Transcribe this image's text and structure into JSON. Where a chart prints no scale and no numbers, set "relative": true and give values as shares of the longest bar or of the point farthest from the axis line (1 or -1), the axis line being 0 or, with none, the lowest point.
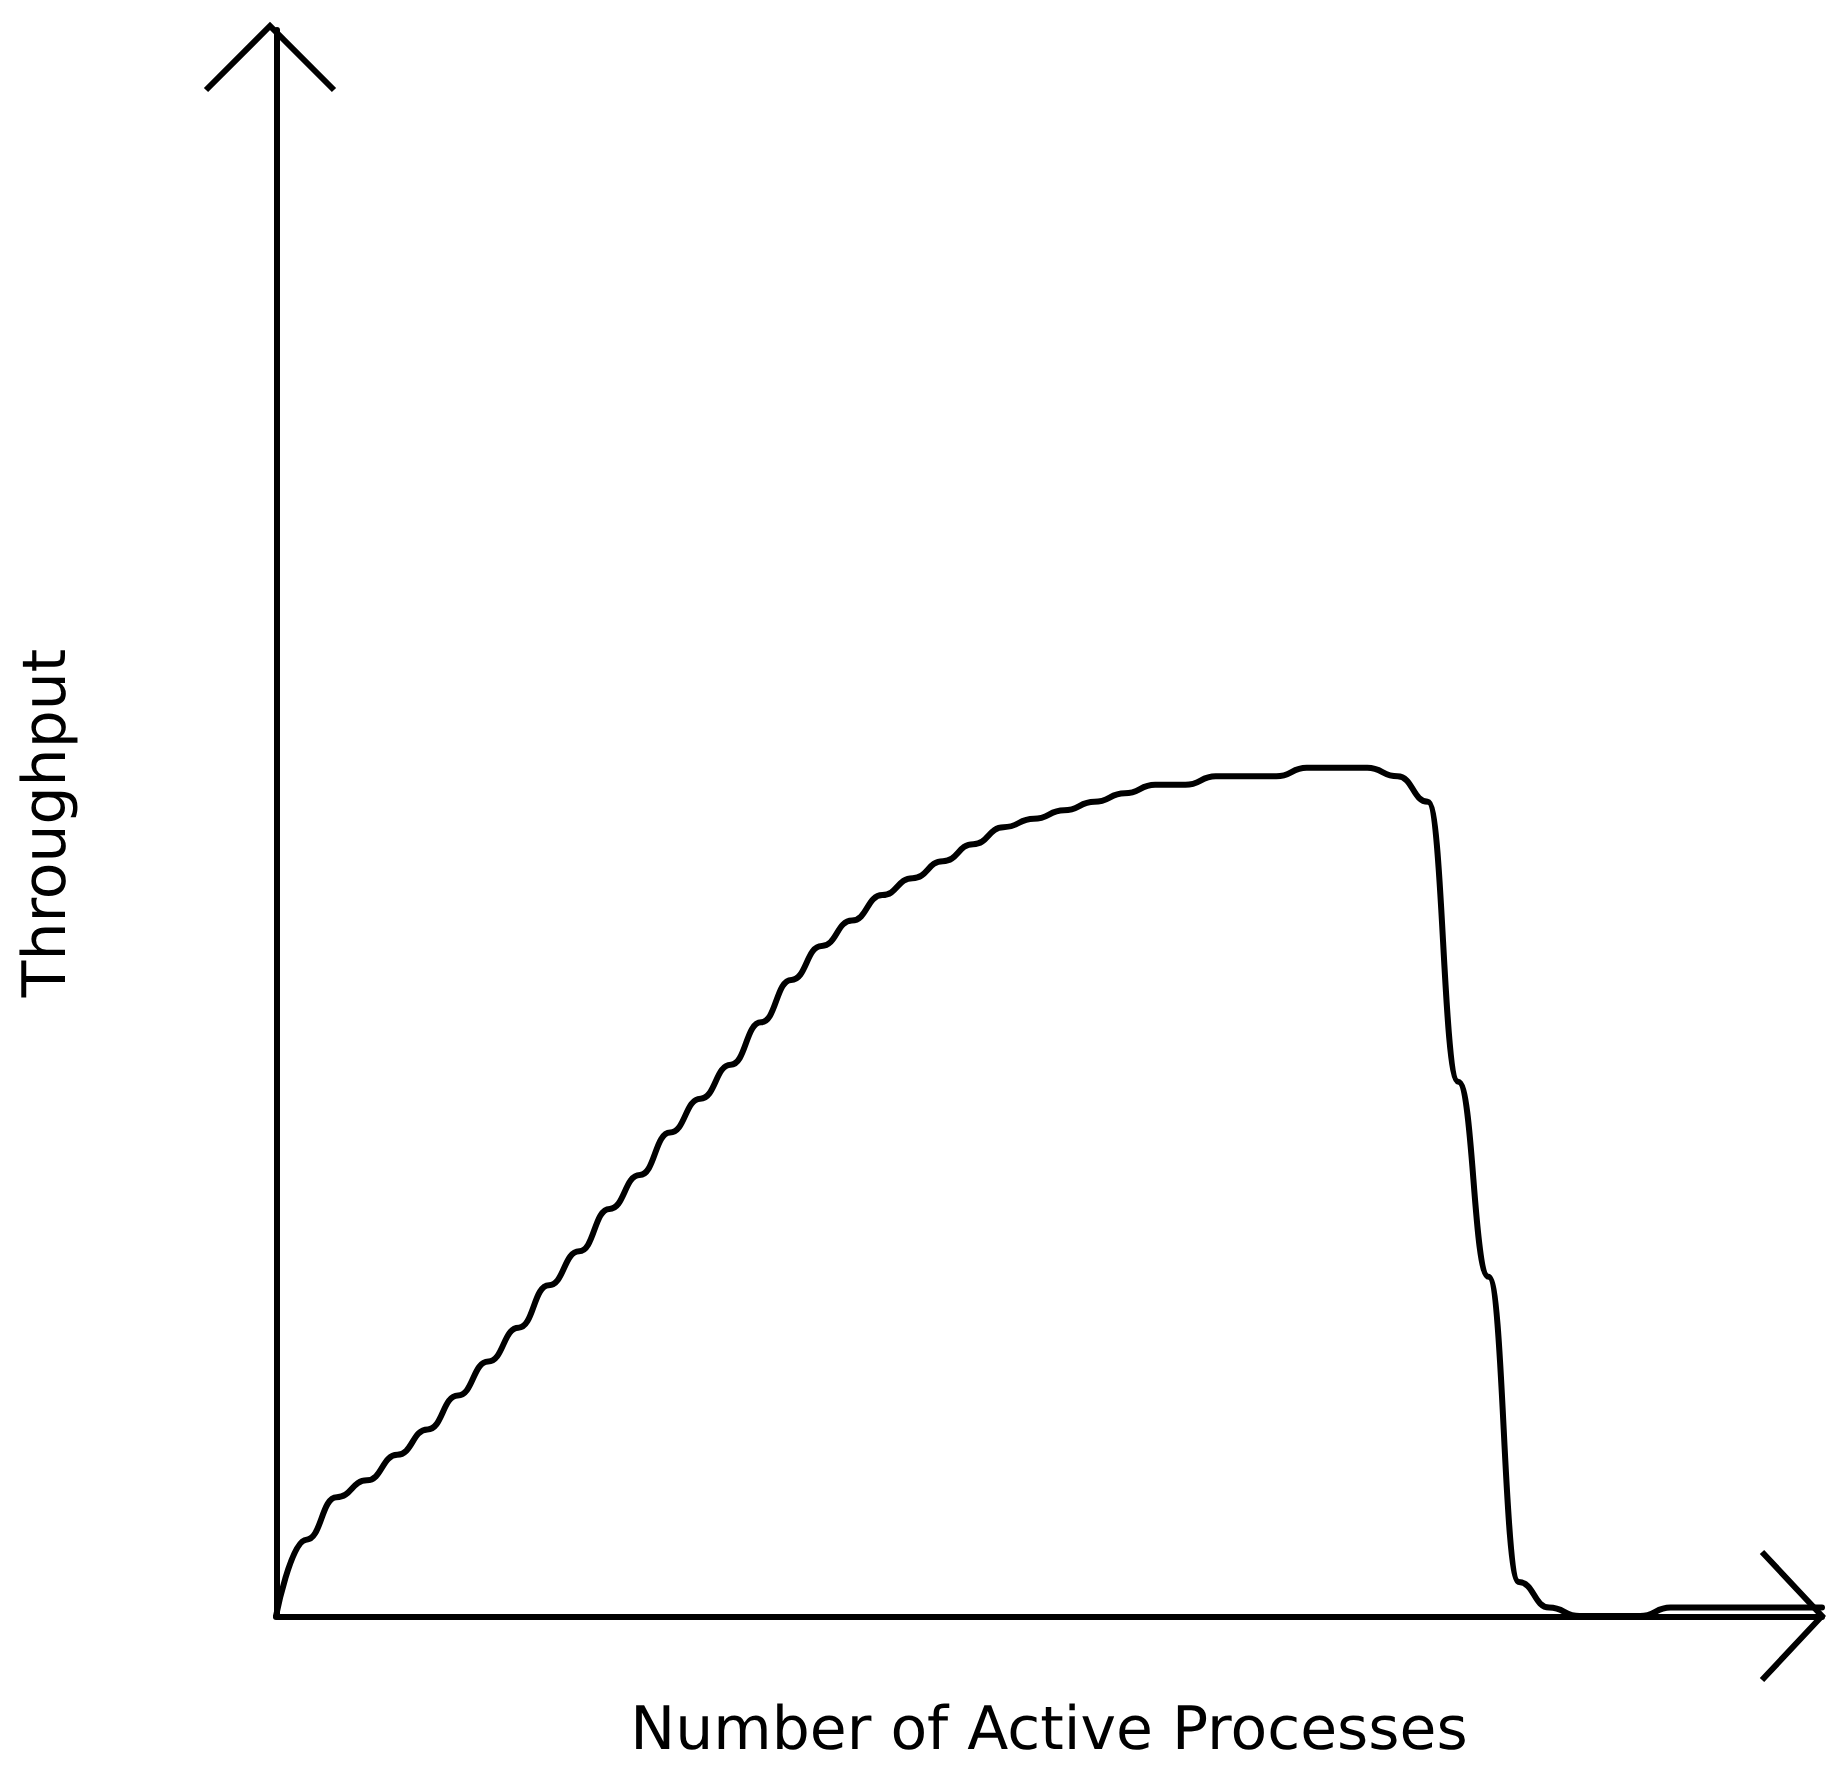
{
  "chart_data": {
    "type": "line",
    "relative": true,
    "xlabel": "Number of Active Processes",
    "ylabel": "Throughput",
    "categories": [
      null,
      null,
      null,
      null,
      null,
      null,
      null,
      null,
      null,
      null,
      null,
      null,
      null,
      null,
      null,
      null,
      null,
      null,
      null,
      null,
      null,
      null,
      null,
      null,
      null,
      null,
      null,
      null,
      null,
      null,
      null,
      null,
      null,
      null,
      null,
      null,
      null,
      null,
      null,
      null,
      null,
      null,
      null,
      null,
      null,
      null,
      null,
      null,
      null,
      null,
      null,
      null
    ],
    "series": [
      {
        "color": "#000000",
        "values": [
          0,
          0.09,
          0.14,
          0.16,
          0.19,
          0.22,
          0.26,
          0.3,
          0.34,
          0.39,
          0.43,
          0.48,
          0.52,
          0.57,
          0.61,
          0.65,
          0.7,
          0.75,
          0.79,
          0.82,
          0.85,
          0.87,
          0.89,
          0.91,
          0.93,
          0.94,
          0.95,
          0.96,
          0.97,
          0.98,
          0.98,
          0.99,
          0.99,
          0.99,
          1,
          1,
          1,
          0.99,
          0.96,
          0.63,
          0.4,
          0.04,
          0.01,
          0,
          0,
          0,
          0.01,
          0.01,
          0.01,
          0.01,
          0.01,
          0.01
        ]
      }
    ],
    "grid": false,
    "marker": "none",
    "line_style": "solid"
  }
}
